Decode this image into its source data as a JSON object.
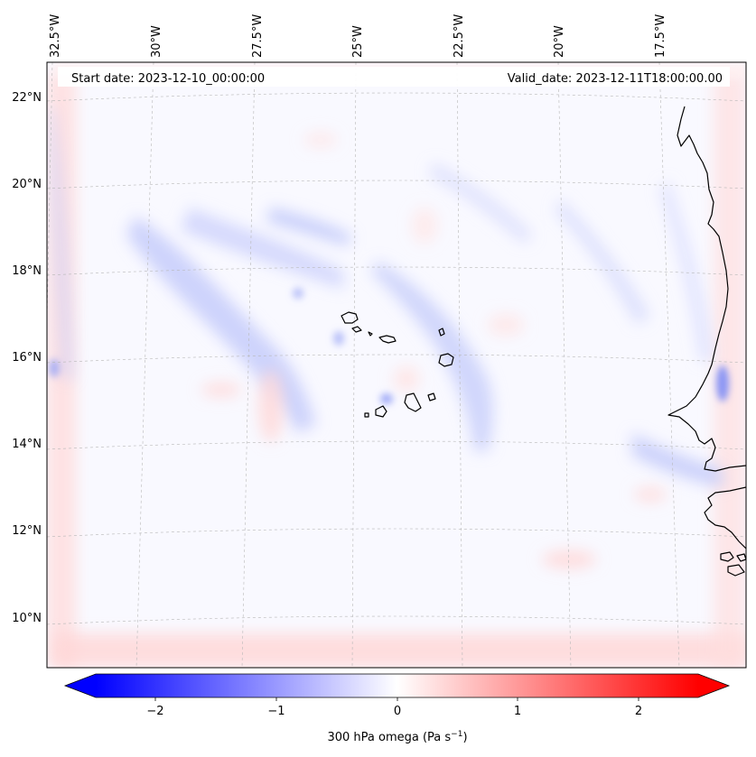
{
  "map": {
    "header": {
      "start_date": "Start date: 2023-12-10_00:00:00",
      "valid_date": "Valid_date: 2023-12-11T18:00:00.00"
    },
    "longitude_labels": [
      "32.5°W",
      "30°W",
      "27.5°W",
      "25°W",
      "22.5°W",
      "20°W",
      "17.5°W"
    ],
    "latitude_labels": [
      "22°N",
      "20°N",
      "18°N",
      "16°N",
      "14°N",
      "12°N",
      "10°N"
    ],
    "colorbar": {
      "tick_labels": [
        "−2",
        "−1",
        "0",
        "1",
        "2"
      ],
      "tick_values": [
        -2,
        -1,
        0,
        1,
        2
      ],
      "range": [
        -2.5,
        2.5
      ],
      "label_main": "300 hPa omega (Pa s",
      "label_sup": "−1",
      "label_end": ")",
      "color_min": "#0000ff",
      "color_mid": "#ffffff",
      "color_max": "#ff0000"
    },
    "colors": {
      "coastline": "#000000",
      "gridline": "#b8b8b8"
    }
  }
}
